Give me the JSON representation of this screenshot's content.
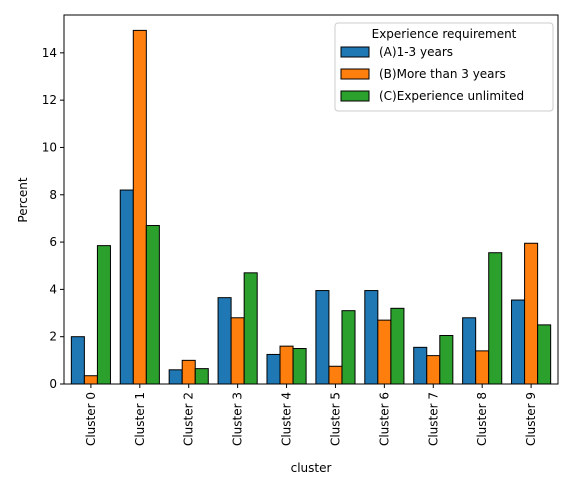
{
  "chart_data": {
    "type": "bar",
    "xlabel": "cluster",
    "ylabel": "Percent",
    "ylim": [
      0,
      15.6
    ],
    "yticks": [
      0,
      2,
      4,
      6,
      8,
      10,
      12,
      14
    ],
    "categories": [
      "Cluster 0",
      "Cluster 1",
      "Cluster 2",
      "Cluster 3",
      "Cluster 4",
      "Cluster 5",
      "Cluster 6",
      "Cluster 7",
      "Cluster 8",
      "Cluster 9"
    ],
    "legend": {
      "title": "Experience requirement",
      "placement": "top-right"
    },
    "series": [
      {
        "name": "(A)1-3 years",
        "color": "#1f77b4",
        "values": [
          2.0,
          8.2,
          0.6,
          3.65,
          1.25,
          3.95,
          3.95,
          1.55,
          2.8,
          3.55
        ]
      },
      {
        "name": "(B)More than 3 years",
        "color": "#ff7f0e",
        "values": [
          0.35,
          14.95,
          1.0,
          2.8,
          1.6,
          0.75,
          2.7,
          1.2,
          1.4,
          5.95
        ]
      },
      {
        "name": "(C)Experience unlimited",
        "color": "#2ca02c",
        "values": [
          5.85,
          6.7,
          0.65,
          4.7,
          1.5,
          3.1,
          3.2,
          2.05,
          5.55,
          2.5
        ]
      }
    ]
  }
}
